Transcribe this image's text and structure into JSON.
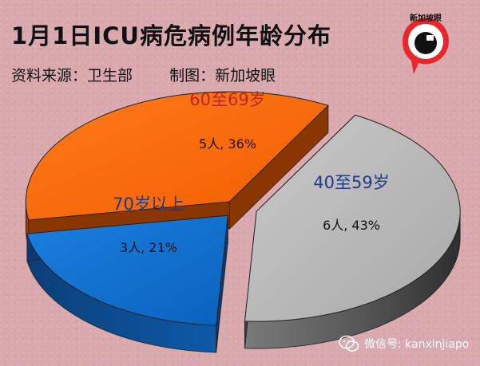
{
  "header": {
    "title": "1月1日ICU病危病例年龄分布",
    "source": "资料来源：卫生部",
    "made_by": "制图：新加坡眼"
  },
  "logo": {
    "text": "新加坡眼",
    "icon": "eye-logo-icon",
    "accent": "#e8262b"
  },
  "watermark": {
    "text": "微信号: kanxinjiapo",
    "icon": "wechat-icon"
  },
  "colors": {
    "age_40_59": "#b8b8b8",
    "age_60_69": "#ff6600",
    "age_70_plus": "#0a6ecf",
    "label_blue": "#1f3a8a",
    "label_red": "#b8281a"
  },
  "chart_data": {
    "type": "pie",
    "title": "1月1日ICU病危病例年龄分布",
    "style": "3d-exploded",
    "slices": [
      {
        "label": "40至59岁",
        "value": 6,
        "percent": 43,
        "value_label": "6人, 43%",
        "color": "#b8b8b8",
        "label_color": "#1f3a8a"
      },
      {
        "label": "70岁以上",
        "value": 3,
        "percent": 21,
        "value_label": "3人, 21%",
        "color": "#0a6ecf",
        "label_color": "#1f3a8a"
      },
      {
        "label": "60至69岁",
        "value": 5,
        "percent": 36,
        "value_label": "5人, 36%",
        "color": "#ff6600",
        "label_color": "#b8281a"
      }
    ]
  }
}
